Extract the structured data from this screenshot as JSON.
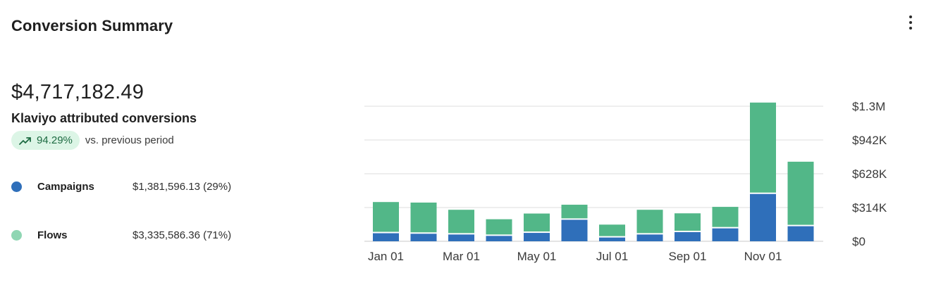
{
  "card": {
    "title": "Conversion Summary"
  },
  "summary": {
    "total": "$4,717,182.49",
    "total_label": "Klaviyo attributed conversions",
    "change_percent": "94.29%",
    "change_text": "vs. previous period"
  },
  "legend": [
    {
      "name": "Campaigns",
      "value": "$1,381,596.13 (29%)",
      "color": "#2f6fba"
    },
    {
      "name": "Flows",
      "value": "$3,335,586.36 (71%)",
      "color": "#52b788"
    }
  ],
  "colors": {
    "campaigns": "#2f6fba",
    "flows": "#52b788",
    "badge_bg": "#dcf5e6",
    "badge_text": "#1d6b42",
    "grid": "#dcdcdc"
  },
  "icons": {
    "more": "more-vertical-icon",
    "trend": "trending-up-icon"
  },
  "chart_data": {
    "type": "bar",
    "stacked": true,
    "categories": [
      "Jan",
      "Feb",
      "Mar",
      "Apr",
      "May",
      "Jun",
      "Jul",
      "Aug",
      "Sep",
      "Oct",
      "Nov",
      "Dec"
    ],
    "x_tick_labels": [
      "Jan 01",
      "Mar 01",
      "May 01",
      "Jul 01",
      "Sep 01",
      "Nov 01"
    ],
    "series": [
      {
        "name": "Campaigns",
        "values": [
          75000,
          70000,
          63000,
          50000,
          78000,
          200000,
          35000,
          63000,
          85000,
          120000,
          440000,
          140000
        ]
      },
      {
        "name": "Flows",
        "values": [
          290000,
          290000,
          230000,
          155000,
          180000,
          140000,
          120000,
          230000,
          175000,
          200000,
          850000,
          600000
        ]
      }
    ],
    "y_ticks": [
      "$0",
      "$314K",
      "$628K",
      "$942K",
      "$1.3M"
    ],
    "ylim": [
      0,
      1256000
    ],
    "y_axis_position": "right",
    "grid": true,
    "legend": "left"
  }
}
